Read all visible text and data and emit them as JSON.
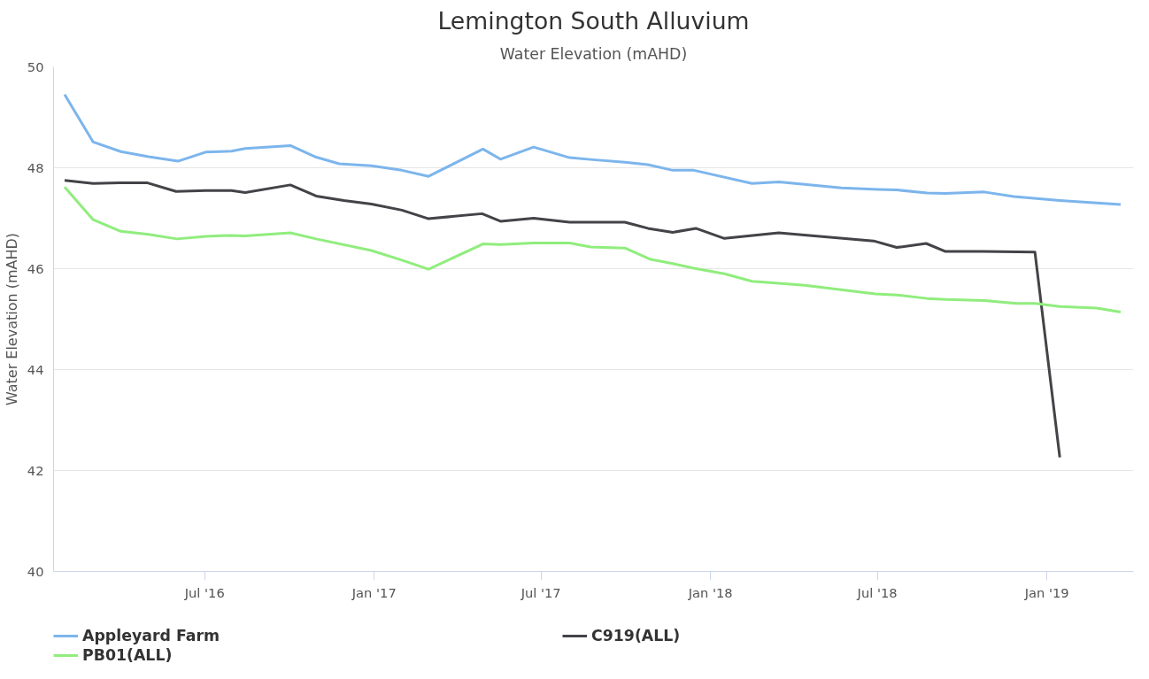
{
  "chart_data": {
    "type": "line",
    "title": "Lemington South Alluvium",
    "subtitle": "Water Elevation (mAHD)",
    "ylabel": "Water Elevation (mAHD)",
    "xlim": [
      "2016-01-19",
      "2019-04-05"
    ],
    "xticks": [
      {
        "value": "2016-07-01",
        "label": "Jul '16"
      },
      {
        "value": "2017-01-01",
        "label": "Jan '17"
      },
      {
        "value": "2017-07-01",
        "label": "Jul '17"
      },
      {
        "value": "2018-01-01",
        "label": "Jan '18"
      },
      {
        "value": "2018-07-01",
        "label": "Jul '18"
      },
      {
        "value": "2019-01-01",
        "label": "Jan '19"
      }
    ],
    "ylim": [
      40,
      50
    ],
    "yticks": [
      40,
      42,
      44,
      46,
      48,
      50
    ],
    "grid": "y",
    "legend": "bottom",
    "line_style": "solid",
    "series": [
      {
        "name": "Appleyard Farm",
        "color": "#7cb5ec",
        "x": [
          "2016-01-31",
          "2016-03-02",
          "2016-04-01",
          "2016-05-01",
          "2016-06-02",
          "2016-07-02",
          "2016-07-30",
          "2016-08-14",
          "2016-10-02",
          "2016-10-30",
          "2016-11-24",
          "2016-12-29",
          "2017-01-31",
          "2017-03-01",
          "2017-04-29",
          "2017-05-18",
          "2017-06-23",
          "2017-08-01",
          "2017-08-26",
          "2017-09-30",
          "2017-10-25",
          "2017-11-21",
          "2017-12-14",
          "2018-02-15",
          "2018-03-16",
          "2018-04-13",
          "2018-05-23",
          "2018-07-02",
          "2018-07-22",
          "2018-08-24",
          "2018-09-13",
          "2018-10-25",
          "2018-11-26",
          "2019-01-15",
          "2019-03-22"
        ],
        "values": [
          49.45,
          48.51,
          48.32,
          48.22,
          48.13,
          48.31,
          48.33,
          48.38,
          48.44,
          48.21,
          48.08,
          48.04,
          47.95,
          47.83,
          48.37,
          48.17,
          48.41,
          48.2,
          48.16,
          48.11,
          48.06,
          47.95,
          47.95,
          47.69,
          47.72,
          47.67,
          47.6,
          47.57,
          47.56,
          47.5,
          47.49,
          47.52,
          47.43,
          47.35,
          47.27
        ]
      },
      {
        "name": "C919(ALL)",
        "color": "#434348",
        "x": [
          "2016-01-31",
          "2016-03-02",
          "2016-03-31",
          "2016-04-30",
          "2016-05-31",
          "2016-07-02",
          "2016-07-30",
          "2016-08-14",
          "2016-10-02",
          "2016-10-30",
          "2016-11-29",
          "2016-12-29",
          "2017-01-31",
          "2017-03-01",
          "2017-04-28",
          "2017-05-18",
          "2017-06-23",
          "2017-08-01",
          "2017-09-30",
          "2017-10-25",
          "2017-11-21",
          "2017-12-16",
          "2018-01-16",
          "2018-03-16",
          "2018-06-27",
          "2018-07-22",
          "2018-08-23",
          "2018-09-13",
          "2018-10-23",
          "2018-12-19",
          "2019-01-15"
        ],
        "values": [
          47.75,
          47.69,
          47.7,
          47.7,
          47.53,
          47.55,
          47.55,
          47.51,
          47.66,
          47.44,
          47.35,
          47.28,
          47.16,
          46.99,
          47.09,
          46.94,
          47.0,
          46.92,
          46.92,
          46.8,
          46.72,
          46.8,
          46.6,
          46.71,
          46.55,
          46.42,
          46.5,
          46.34,
          46.34,
          46.33,
          42.26
        ]
      },
      {
        "name": "PB01(ALL)",
        "color": "#90ed7d",
        "x": [
          "2016-01-31",
          "2016-03-02",
          "2016-04-01",
          "2016-05-01",
          "2016-06-01",
          "2016-07-02",
          "2016-07-30",
          "2016-08-14",
          "2016-10-02",
          "2016-10-30",
          "2016-12-29",
          "2017-01-31",
          "2017-03-01",
          "2017-04-29",
          "2017-05-18",
          "2017-06-23",
          "2017-08-01",
          "2017-08-24",
          "2017-09-30",
          "2017-10-27",
          "2017-11-21",
          "2017-12-14",
          "2018-01-16",
          "2018-02-15",
          "2018-03-16",
          "2018-04-13",
          "2018-06-29",
          "2018-07-22",
          "2018-08-24",
          "2018-09-13",
          "2018-10-25",
          "2018-11-29",
          "2018-12-19",
          "2019-01-15",
          "2019-02-24",
          "2019-03-22"
        ],
        "values": [
          47.62,
          46.97,
          46.74,
          46.68,
          46.59,
          46.64,
          46.66,
          46.65,
          46.71,
          46.59,
          46.36,
          46.17,
          45.99,
          46.49,
          46.48,
          46.51,
          46.51,
          46.43,
          46.41,
          46.19,
          46.1,
          46.01,
          45.9,
          45.75,
          45.71,
          45.67,
          45.5,
          45.48,
          45.41,
          45.39,
          45.37,
          45.31,
          45.31,
          45.25,
          45.22,
          45.14
        ]
      }
    ]
  }
}
